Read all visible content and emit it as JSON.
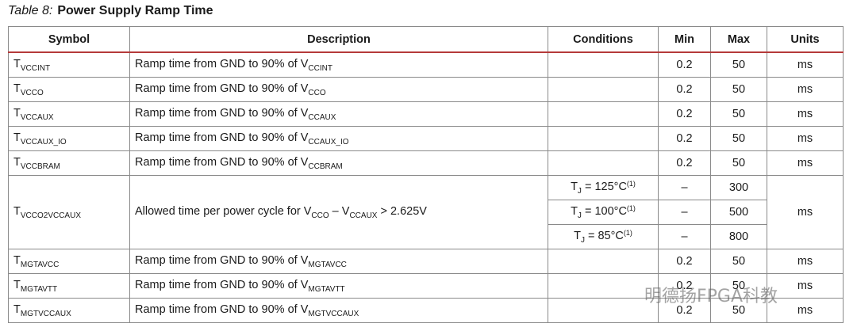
{
  "title": {
    "label": "Table  8:",
    "text": "Power Supply Ramp Time"
  },
  "table": {
    "headers": [
      "Symbol",
      "Description",
      "Conditions",
      "Min",
      "Max",
      "Units"
    ],
    "rows": [
      {
        "symbol": [
          {
            "text": "T"
          },
          {
            "sub": "VCCINT"
          }
        ],
        "description": [
          {
            "text": "Ramp time from GND to 90% of V"
          },
          {
            "sub": "CCINT"
          }
        ],
        "min": "0.2",
        "max": "50",
        "units": "ms"
      },
      {
        "symbol": [
          {
            "text": "T"
          },
          {
            "sub": "VCCO"
          }
        ],
        "description": [
          {
            "text": "Ramp time from GND to 90% of V"
          },
          {
            "sub": "CCO"
          }
        ],
        "min": "0.2",
        "max": "50",
        "units": "ms"
      },
      {
        "symbol": [
          {
            "text": "T"
          },
          {
            "sub": "VCCAUX"
          }
        ],
        "description": [
          {
            "text": "Ramp time from GND to 90% of V"
          },
          {
            "sub": "CCAUX"
          }
        ],
        "min": "0.2",
        "max": "50",
        "units": "ms"
      },
      {
        "symbol": [
          {
            "text": "T"
          },
          {
            "sub": "VCCAUX_IO"
          }
        ],
        "description": [
          {
            "text": "Ramp time from GND to 90% of V"
          },
          {
            "sub": "CCAUX_IO"
          }
        ],
        "min": "0.2",
        "max": "50",
        "units": "ms"
      },
      {
        "symbol": [
          {
            "text": "T"
          },
          {
            "sub": "VCCBRAM"
          }
        ],
        "description": [
          {
            "text": "Ramp time from GND to 90% of V"
          },
          {
            "sub": "CCBRAM"
          }
        ],
        "min": "0.2",
        "max": "50",
        "units": "ms"
      },
      {
        "symbol": [
          {
            "text": "T"
          },
          {
            "sub": "VCCO2VCCAUX"
          }
        ],
        "description": [
          {
            "text": "Allowed time per power cycle for V"
          },
          {
            "sub": "CCO"
          },
          {
            "text": " – V"
          },
          {
            "sub": "CCAUX"
          },
          {
            "text": " > 2.625V"
          }
        ],
        "units": "ms",
        "subrows": [
          {
            "conditions": [
              {
                "text": "T"
              },
              {
                "sub": "J"
              },
              {
                "text": " = 125°C"
              },
              {
                "sup": "(1)"
              }
            ],
            "min": "–",
            "max": "300"
          },
          {
            "conditions": [
              {
                "text": "T"
              },
              {
                "sub": "J"
              },
              {
                "text": " = 100°C"
              },
              {
                "sup": "(1)"
              }
            ],
            "min": "–",
            "max": "500"
          },
          {
            "conditions": [
              {
                "text": "T"
              },
              {
                "sub": "J"
              },
              {
                "text": " = 85°C"
              },
              {
                "sup": "(1)"
              }
            ],
            "min": "–",
            "max": "800"
          }
        ]
      },
      {
        "symbol": [
          {
            "text": "T"
          },
          {
            "sub": "MGTAVCC"
          }
        ],
        "description": [
          {
            "text": "Ramp time from GND to 90% of V"
          },
          {
            "sub": "MGTAVCC"
          }
        ],
        "min": "0.2",
        "max": "50",
        "units": "ms"
      },
      {
        "symbol": [
          {
            "text": "T"
          },
          {
            "sub": "MGTAVTT"
          }
        ],
        "description": [
          {
            "text": "Ramp time from GND to 90% of V"
          },
          {
            "sub": "MGTAVTT"
          }
        ],
        "min": "0.2",
        "max": "50",
        "units": "ms"
      },
      {
        "symbol": [
          {
            "text": "T"
          },
          {
            "sub": "MGTVCCAUX"
          }
        ],
        "description": [
          {
            "text": "Ramp time from GND to 90% of V"
          },
          {
            "sub": "MGTVCCAUX"
          }
        ],
        "min": "0.2",
        "max": "50",
        "units": "ms"
      }
    ]
  },
  "watermark": "明德扬FPGA科教"
}
